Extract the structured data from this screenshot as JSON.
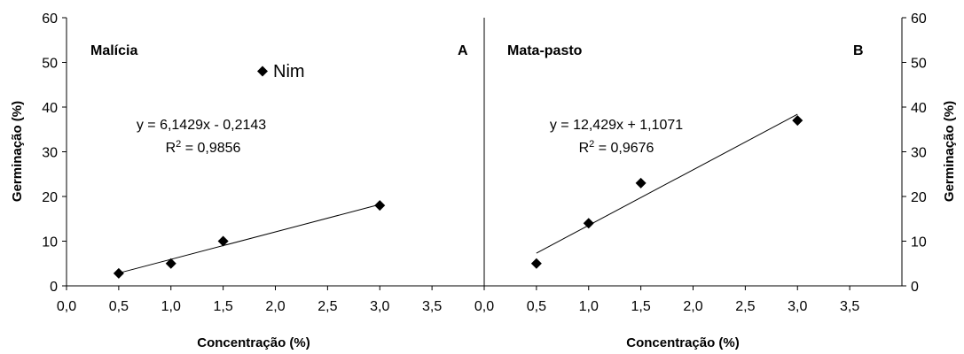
{
  "chart_data": [
    {
      "type": "scatter",
      "panel_title": "Malícia",
      "panel_letter": "A",
      "xlabel": "Concentração (%)",
      "ylabel": "Germinação (%)",
      "xlim": [
        0,
        4
      ],
      "ylim": [
        0,
        60
      ],
      "xticks": [
        "0,0",
        "0,5",
        "1,0",
        "1,5",
        "2,0",
        "2,5",
        "3,0",
        "3,5"
      ],
      "yticks": [
        "0",
        "10",
        "20",
        "30",
        "40",
        "50",
        "60"
      ],
      "series": [
        {
          "name": "Nim",
          "x": [
            0.5,
            1.0,
            1.5,
            3.0
          ],
          "y": [
            2.8,
            5.0,
            10.0,
            18.0
          ]
        }
      ],
      "trendline": {
        "slope": 6.1429,
        "intercept": -0.2143,
        "x_range": [
          0.5,
          3.0
        ]
      },
      "equation": "y = 6,1429x - 0,2143",
      "r2_prefix": "R",
      "r2_value": " = 0,9856",
      "legend": "Nim"
    },
    {
      "type": "scatter",
      "panel_title": "Mata-pasto",
      "panel_letter": "B",
      "xlabel": "Concentração (%)",
      "ylabel": "Germinação (%)",
      "xlim": [
        0,
        4
      ],
      "ylim": [
        0,
        60
      ],
      "xticks": [
        "0,0",
        "0,5",
        "1,0",
        "1,5",
        "2,0",
        "2,5",
        "3,0",
        "3,5"
      ],
      "yticks": [
        "0",
        "10",
        "20",
        "30",
        "40",
        "50",
        "60"
      ],
      "series": [
        {
          "x": [
            0.5,
            1.0,
            1.5,
            3.0
          ],
          "y": [
            5.0,
            14.0,
            23.0,
            37.0
          ]
        }
      ],
      "trendline": {
        "slope": 12.429,
        "intercept": 1.1071,
        "x_range": [
          0.5,
          3.0
        ]
      },
      "equation": "y = 12,429x + 1,1071",
      "r2_prefix": "R",
      "r2_value": " = 0,9676"
    }
  ]
}
